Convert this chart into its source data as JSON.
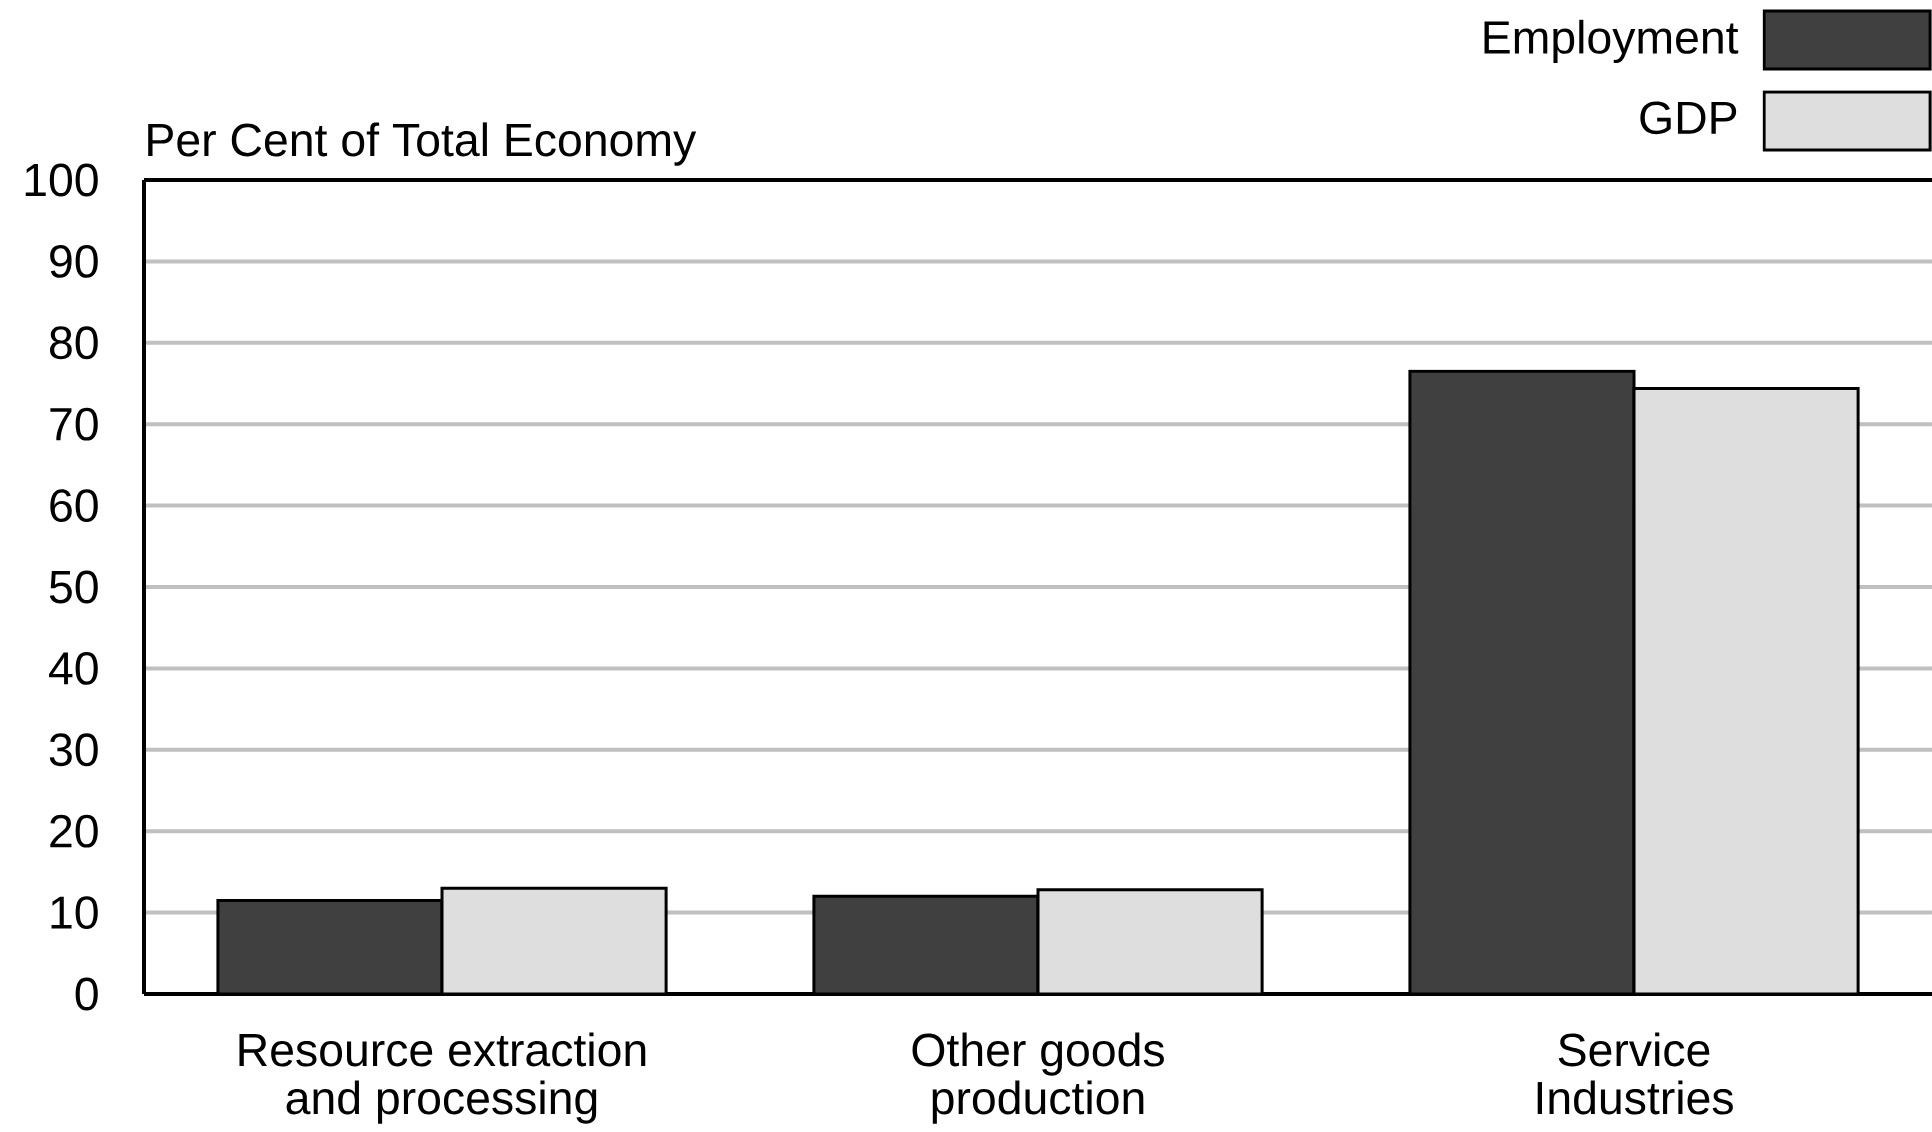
{
  "chart_data": {
    "type": "bar",
    "ylabel": "Per Cent of Total Economy",
    "categories": [
      "Resource extraction and processing",
      "Other goods production",
      "Service Industries"
    ],
    "series": [
      {
        "name": "Employment",
        "color": "#404040",
        "values": [
          11.5,
          12,
          76.5
        ]
      },
      {
        "name": "GDP",
        "color": "#dedede",
        "values": [
          13,
          12.8,
          74.4
        ]
      }
    ],
    "ylim": [
      0,
      100
    ],
    "yticks": [
      0,
      10,
      20,
      30,
      40,
      50,
      60,
      70,
      80,
      90,
      100
    ],
    "grid": "y",
    "legend": "top right"
  }
}
